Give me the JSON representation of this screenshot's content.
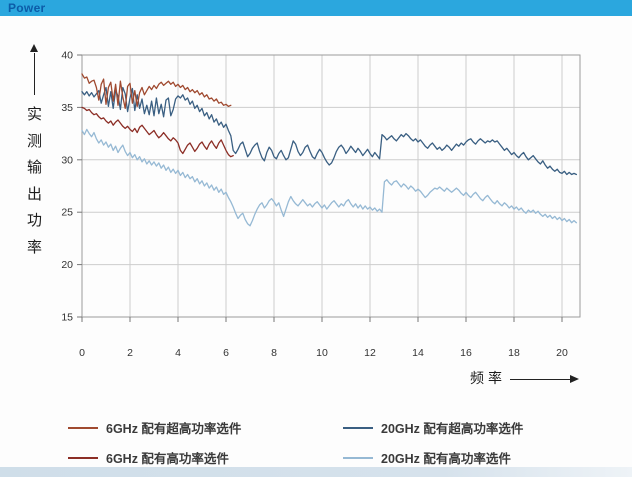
{
  "header": {
    "title": "Power",
    "bar_color": "#2ba7de",
    "title_color": "#0c5ca8"
  },
  "axes": {
    "y_label": "实测输出功率",
    "x_label": "频率",
    "y_ticks": [
      40,
      35,
      30,
      25,
      20,
      15
    ],
    "x_ticks": [
      0,
      2,
      4,
      6,
      8,
      10,
      12,
      14,
      16,
      18,
      20
    ]
  },
  "chart_data": {
    "type": "line",
    "title": "Power",
    "xlabel": "频率",
    "ylabel": "实测输出功率",
    "xlim": [
      0,
      20.75
    ],
    "ylim": [
      15,
      40
    ],
    "grid": true,
    "legend_position": "bottom",
    "series": [
      {
        "name": "6GHz 配有超高功率选件",
        "color": "#a04a30",
        "x0": 0,
        "dx": 0.1,
        "values": [
          38.2,
          37.8,
          37.9,
          37.3,
          37.5,
          37.6,
          36.9,
          35.7,
          37.2,
          37.7,
          35.3,
          36.9,
          37.4,
          35.6,
          37.2,
          35.2,
          37.5,
          36.0,
          34.9,
          37.0,
          37.3,
          35.4,
          36.6,
          35.1,
          36.4,
          36.9,
          36.2,
          36.6,
          37.0,
          36.7,
          37.1,
          36.8,
          37.2,
          37.4,
          37.1,
          37.3,
          37.5,
          37.2,
          37.4,
          37.0,
          37.2,
          36.9,
          37.1,
          36.7,
          36.9,
          36.5,
          36.7,
          36.4,
          36.6,
          36.2,
          36.4,
          36.0,
          36.2,
          35.8,
          35.9,
          35.6,
          35.8,
          35.4,
          35.5,
          35.2,
          35.3,
          35.1,
          35.2
        ]
      },
      {
        "name": "6GHz 配有高功率选件",
        "color": "#8c2e26",
        "x0": 0,
        "dx": 0.1,
        "values": [
          35.0,
          34.9,
          34.7,
          34.8,
          34.5,
          34.3,
          34.4,
          34.1,
          33.9,
          34.0,
          33.7,
          33.5,
          33.7,
          33.3,
          33.6,
          33.8,
          33.5,
          33.2,
          33.0,
          33.2,
          32.9,
          32.7,
          33.0,
          32.6,
          33.1,
          33.3,
          33.0,
          32.7,
          32.4,
          32.6,
          32.8,
          32.4,
          32.1,
          32.3,
          32.6,
          32.3,
          32.0,
          31.8,
          32.1,
          31.9,
          31.6,
          30.9,
          30.6,
          31.0,
          31.4,
          31.6,
          31.2,
          30.8,
          31.1,
          31.5,
          31.7,
          31.3,
          31.0,
          31.5,
          31.8,
          31.4,
          31.1,
          31.6,
          31.9,
          31.4,
          30.9,
          30.5,
          30.3,
          30.4
        ]
      },
      {
        "name": "20GHz 配有超高功率选件",
        "color": "#3a5f82",
        "x0": 0,
        "dx": 0.1,
        "values": [
          36.5,
          36.2,
          36.5,
          36.1,
          36.4,
          36.0,
          36.3,
          36.6,
          35.4,
          36.2,
          36.9,
          35.1,
          36.5,
          34.9,
          36.6,
          36.1,
          34.8,
          36.9,
          36.3,
          34.6,
          35.9,
          36.8,
          34.7,
          36.2,
          34.9,
          35.8,
          34.4,
          35.2,
          34.3,
          35.6,
          34.2,
          35.9,
          34.4,
          35.3,
          34.1,
          35.7,
          35.9,
          34.2,
          34.8,
          35.8,
          36.1,
          35.9,
          36.2,
          35.7,
          35.9,
          35.3,
          35.6,
          34.9,
          35.2,
          34.6,
          34.9,
          34.2,
          34.5,
          33.9,
          34.3,
          33.6,
          33.9,
          33.3,
          33.6,
          33.1,
          33.4,
          32.8,
          32.3,
          30.9,
          30.6,
          31.0,
          31.5,
          31.7,
          31.0,
          30.3,
          30.6,
          31.1,
          31.4,
          31.6,
          30.8,
          30.2,
          29.9,
          30.7,
          31.2,
          30.9,
          30.3,
          30.1,
          30.6,
          30.9,
          30.4,
          30.0,
          30.2,
          31.0,
          31.8,
          31.5,
          30.8,
          30.4,
          30.7,
          31.2,
          31.4,
          30.8,
          30.3,
          30.1,
          30.6,
          31.0,
          30.7,
          30.2,
          29.8,
          29.5,
          29.7,
          30.2,
          30.8,
          31.2,
          31.4,
          31.1,
          30.6,
          30.9,
          31.3,
          31.0,
          30.7,
          31.1,
          30.8,
          30.4,
          30.7,
          31.0,
          30.6,
          30.3,
          30.7,
          30.4,
          30.1,
          32.4,
          32.2,
          31.9,
          32.1,
          32.3,
          32.0,
          31.8,
          32.1,
          32.4,
          32.2,
          32.5,
          32.3,
          32.0,
          31.8,
          32.0,
          31.7,
          31.9,
          31.6,
          31.3,
          31.1,
          31.4,
          31.6,
          31.3,
          31.0,
          31.2,
          30.9,
          31.1,
          31.4,
          31.2,
          30.9,
          31.2,
          31.5,
          31.3,
          31.6,
          31.4,
          31.7,
          31.9,
          32.0,
          31.7,
          31.5,
          31.8,
          32.0,
          31.8,
          31.6,
          31.8,
          31.7,
          31.9,
          31.7,
          31.8,
          31.5,
          31.2,
          30.9,
          31.1,
          30.8,
          30.5,
          30.7,
          30.4,
          30.2,
          30.5,
          30.7,
          30.3,
          30.0,
          30.2,
          30.4,
          30.1,
          29.8,
          29.6,
          29.9,
          29.5,
          29.2,
          29.4,
          29.1,
          28.9,
          29.1,
          28.8,
          28.7,
          28.9,
          28.6,
          28.8,
          28.6,
          28.7,
          28.6
        ]
      },
      {
        "name": "20GHz 配有高功率选件",
        "color": "#96b9d4",
        "x0": 0,
        "dx": 0.1,
        "values": [
          32.8,
          32.4,
          32.9,
          32.5,
          32.2,
          32.6,
          32.0,
          31.6,
          31.9,
          31.4,
          31.7,
          31.2,
          31.5,
          30.9,
          31.3,
          30.7,
          31.1,
          31.4,
          30.8,
          30.4,
          30.7,
          30.2,
          30.5,
          30.0,
          30.3,
          29.8,
          30.1,
          29.6,
          29.9,
          29.5,
          29.8,
          29.4,
          29.7,
          29.2,
          29.5,
          29.0,
          29.3,
          28.8,
          29.1,
          28.7,
          29.0,
          28.5,
          28.8,
          28.3,
          28.6,
          28.2,
          28.4,
          27.9,
          28.2,
          27.7,
          28.0,
          27.5,
          27.8,
          27.3,
          27.6,
          27.1,
          27.4,
          26.9,
          27.2,
          26.7,
          26.9,
          26.4,
          26.0,
          25.5,
          24.9,
          24.4,
          24.7,
          24.9,
          24.3,
          23.9,
          23.7,
          24.2,
          24.8,
          25.3,
          25.7,
          25.9,
          25.4,
          25.7,
          26.1,
          26.3,
          26.0,
          25.6,
          25.9,
          25.2,
          24.6,
          25.3,
          26.0,
          26.5,
          26.1,
          25.8,
          25.6,
          25.9,
          26.2,
          25.9,
          25.6,
          25.8,
          25.5,
          25.8,
          26.0,
          25.7,
          25.4,
          25.7,
          25.3,
          25.6,
          25.9,
          26.1,
          25.8,
          25.5,
          25.8,
          25.6,
          26.0,
          26.2,
          25.8,
          25.5,
          25.8,
          25.4,
          25.7,
          25.3,
          25.6,
          25.3,
          25.5,
          25.2,
          25.4,
          25.1,
          25.3,
          25.0,
          27.9,
          28.1,
          27.8,
          27.6,
          27.9,
          28.0,
          27.7,
          27.4,
          27.7,
          27.5,
          27.2,
          27.5,
          27.3,
          27.0,
          27.2,
          27.0,
          26.7,
          26.4,
          26.6,
          26.9,
          27.1,
          27.3,
          27.2,
          27.4,
          27.2,
          27.0,
          27.3,
          27.1,
          26.9,
          27.1,
          27.3,
          27.1,
          26.8,
          26.6,
          26.9,
          26.6,
          26.4,
          26.7,
          26.9,
          26.6,
          26.3,
          26.1,
          26.4,
          26.6,
          26.3,
          26.0,
          25.8,
          26.1,
          25.8,
          25.6,
          25.9,
          25.7,
          25.4,
          25.6,
          25.3,
          25.5,
          25.2,
          25.4,
          25.1,
          24.9,
          25.2,
          25.0,
          25.2,
          24.9,
          25.1,
          24.8,
          24.6,
          24.8,
          24.5,
          24.7,
          24.4,
          24.6,
          24.3,
          24.5,
          24.2,
          24.4,
          24.1,
          24.3,
          24.0,
          24.2,
          24.0
        ]
      }
    ]
  }
}
